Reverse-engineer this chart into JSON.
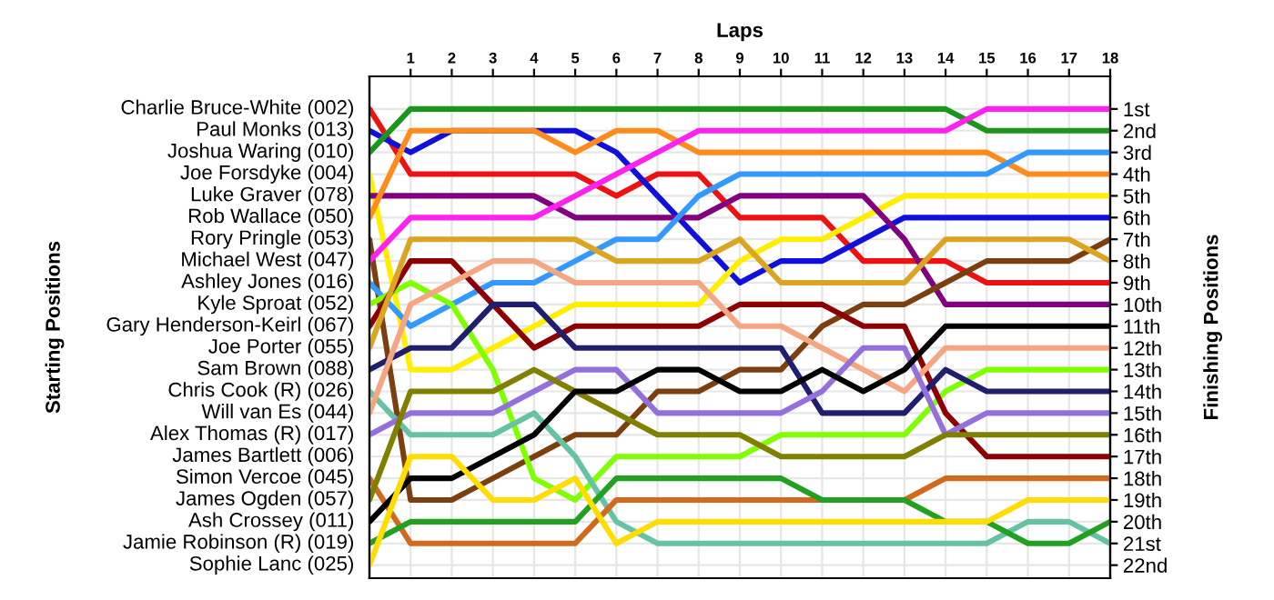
{
  "chart_data": {
    "type": "line",
    "xlabel": "Laps",
    "y2label": "Finishing Positions",
    "x": [
      0,
      1,
      2,
      3,
      4,
      5,
      6,
      7,
      8,
      9,
      10,
      11,
      12,
      13,
      14,
      15,
      16,
      17,
      18
    ],
    "xlim": [
      0,
      18
    ],
    "xticks": [
      1,
      2,
      3,
      4,
      5,
      6,
      7,
      8,
      9,
      10,
      11,
      12,
      13,
      14,
      15,
      16,
      17,
      18
    ],
    "y2lim": [
      22.6,
      -0.5
    ],
    "y2ticks": [
      {
        "value": 1,
        "label": "1st"
      },
      {
        "value": 2,
        "label": "2nd"
      },
      {
        "value": 3,
        "label": "3rd"
      },
      {
        "value": 4,
        "label": "4th"
      },
      {
        "value": 5,
        "label": "5th"
      },
      {
        "value": 6,
        "label": "6th"
      },
      {
        "value": 7,
        "label": "7th"
      },
      {
        "value": 8,
        "label": "8th"
      },
      {
        "value": 9,
        "label": "9th"
      },
      {
        "value": 10,
        "label": "10th"
      },
      {
        "value": 11,
        "label": "11th"
      },
      {
        "value": 12,
        "label": "12th"
      },
      {
        "value": 13,
        "label": "13th"
      },
      {
        "value": 14,
        "label": "14th"
      },
      {
        "value": 15,
        "label": "15th"
      },
      {
        "value": 16,
        "label": "16th"
      },
      {
        "value": 17,
        "label": "17th"
      },
      {
        "value": 18,
        "label": "18th"
      },
      {
        "value": 19,
        "label": "19th"
      },
      {
        "value": 20,
        "label": "20th"
      },
      {
        "value": 21,
        "label": "21st"
      },
      {
        "value": 22,
        "label": "22nd"
      }
    ],
    "annotations": [
      "Starting Positions",
      "James Bartlett (006)"
    ],
    "grid": true,
    "marker": "none",
    "line_style": "solid",
    "series": [
      {
        "name": "Charlie Bruce-White (002)",
        "axis": "y2",
        "color": "#ee1111",
        "values": [
          1,
          4,
          4,
          4,
          4,
          4,
          5,
          4,
          4,
          6,
          6,
          6,
          8,
          8,
          8,
          9,
          9,
          9,
          9
        ]
      },
      {
        "name": "Paul Monks (013)",
        "axis": "y2",
        "color": "#1010dd",
        "values": [
          2,
          3,
          2,
          2,
          2,
          2,
          3,
          5,
          7,
          9,
          8,
          8,
          7,
          6,
          6,
          6,
          6,
          6,
          6
        ]
      },
      {
        "name": "Joshua Waring (010)",
        "axis": "y2",
        "color": "#1a961a",
        "values": [
          3,
          1,
          1,
          1,
          1,
          1,
          1,
          1,
          1,
          1,
          1,
          1,
          1,
          1,
          1,
          2,
          2,
          2,
          2
        ]
      },
      {
        "name": "Joe Forsdyke (004)",
        "axis": "y2",
        "color": "#ffee00",
        "values": [
          4,
          13,
          13,
          12,
          11,
          10,
          10,
          10,
          10,
          8,
          7,
          7,
          6,
          5,
          5,
          5,
          5,
          5,
          5
        ]
      },
      {
        "name": "Luke Graver (078)",
        "axis": "y2",
        "color": "#800080",
        "values": [
          5,
          5,
          5,
          5,
          5,
          6,
          6,
          6,
          6,
          5,
          5,
          5,
          5,
          7,
          10,
          10,
          10,
          10,
          10
        ]
      },
      {
        "name": "Rob Wallace (050)",
        "axis": "y2",
        "color": "#ff8c1a",
        "values": [
          6,
          2,
          2,
          2,
          2,
          3,
          2,
          2,
          3,
          3,
          3,
          3,
          3,
          3,
          3,
          3,
          4,
          4,
          4
        ]
      },
      {
        "name": "Rory Pringle (053)",
        "axis": "y2",
        "color": "#7b3f10",
        "values": [
          7,
          19,
          19,
          18,
          17,
          16,
          16,
          14,
          14,
          13,
          13,
          11,
          10,
          10,
          9,
          8,
          8,
          8,
          7
        ]
      },
      {
        "name": "Michael West (047)",
        "axis": "y2",
        "color": "#ff22ee",
        "values": [
          8,
          6,
          6,
          6,
          6,
          5,
          4,
          3,
          2,
          2,
          2,
          2,
          2,
          2,
          2,
          1,
          1,
          1,
          1
        ]
      },
      {
        "name": "Ashley Jones (016)",
        "axis": "y2",
        "color": "#3399ff",
        "values": [
          9,
          11,
          10,
          9,
          9,
          8,
          7,
          7,
          5,
          4,
          4,
          4,
          4,
          4,
          4,
          4,
          3,
          3,
          3
        ]
      },
      {
        "name": "Kyle Sproat (052)",
        "axis": "y2",
        "color": "#7fff00",
        "values": [
          10,
          9,
          10,
          13,
          18,
          19,
          17,
          17,
          17,
          17,
          16,
          16,
          16,
          16,
          14,
          13,
          13,
          13,
          13
        ]
      },
      {
        "name": "Gary Henderson-Keirl (067)",
        "axis": "y2",
        "color": "#8b0000",
        "values": [
          11,
          8,
          8,
          10,
          12,
          11,
          11,
          11,
          11,
          10,
          10,
          10,
          11,
          11,
          15,
          17,
          17,
          17,
          17
        ]
      },
      {
        "name": "Joe Porter (055)",
        "axis": "y2",
        "color": "#daa520",
        "values": [
          12,
          7,
          7,
          7,
          7,
          7,
          8,
          8,
          8,
          7,
          9,
          9,
          9,
          9,
          7,
          7,
          7,
          7,
          8
        ]
      },
      {
        "name": "Sam Brown (088)",
        "axis": "y2",
        "color": "#1f1f6e",
        "values": [
          13,
          12,
          12,
          10,
          10,
          12,
          12,
          12,
          12,
          12,
          12,
          15,
          15,
          15,
          13,
          14,
          14,
          14,
          14
        ]
      },
      {
        "name": "Chris Cook (R) (026)",
        "axis": "y2",
        "color": "#66c2a5",
        "values": [
          14,
          16,
          16,
          16,
          15,
          17,
          20,
          21,
          21,
          21,
          21,
          21,
          21,
          21,
          21,
          21,
          20,
          20,
          21
        ]
      },
      {
        "name": "Will van Es (044)",
        "axis": "y2",
        "color": "#f4a582",
        "values": [
          15,
          10,
          9,
          8,
          8,
          9,
          9,
          9,
          9,
          11,
          11,
          12,
          13,
          14,
          12,
          12,
          12,
          12,
          12
        ]
      },
      {
        "name": "Alex Thomas (R) (017)",
        "axis": "y2",
        "color": "#9370db",
        "values": [
          16,
          15,
          15,
          15,
          14,
          13,
          13,
          15,
          15,
          15,
          15,
          14,
          12,
          12,
          16,
          15,
          15,
          15,
          15
        ]
      },
      {
        "name": "Simon Vercoe (045)",
        "axis": "y2",
        "color": "#d2691e",
        "values": [
          18,
          21,
          21,
          21,
          21,
          21,
          19,
          19,
          19,
          19,
          19,
          19,
          19,
          19,
          18,
          18,
          18,
          18,
          18
        ]
      },
      {
        "name": "James Ogden (057)",
        "axis": "y2",
        "color": "#808000",
        "values": [
          19,
          14,
          14,
          14,
          13,
          14,
          15,
          16,
          16,
          16,
          17,
          17,
          17,
          17,
          16,
          16,
          16,
          16,
          16
        ]
      },
      {
        "name": "Ash Crossey (011)",
        "axis": "y2",
        "color": "#000000",
        "values": [
          20,
          18,
          18,
          17,
          16,
          14,
          14,
          13,
          13,
          14,
          14,
          13,
          14,
          13,
          11,
          11,
          11,
          11,
          11
        ]
      },
      {
        "name": "Jamie Robinson (R) (019)",
        "axis": "y2",
        "color": "#22a022",
        "values": [
          21,
          20,
          20,
          20,
          20,
          20,
          18,
          18,
          18,
          18,
          18,
          19,
          19,
          19,
          20,
          20,
          21,
          21,
          20
        ]
      },
      {
        "name": "Sophie Lanc (025)",
        "axis": "y2",
        "color": "#ffdd00",
        "values": [
          22,
          17,
          17,
          19,
          19,
          18,
          21,
          20,
          20,
          20,
          20,
          20,
          20,
          20,
          20,
          20,
          19,
          19,
          19
        ]
      }
    ]
  }
}
